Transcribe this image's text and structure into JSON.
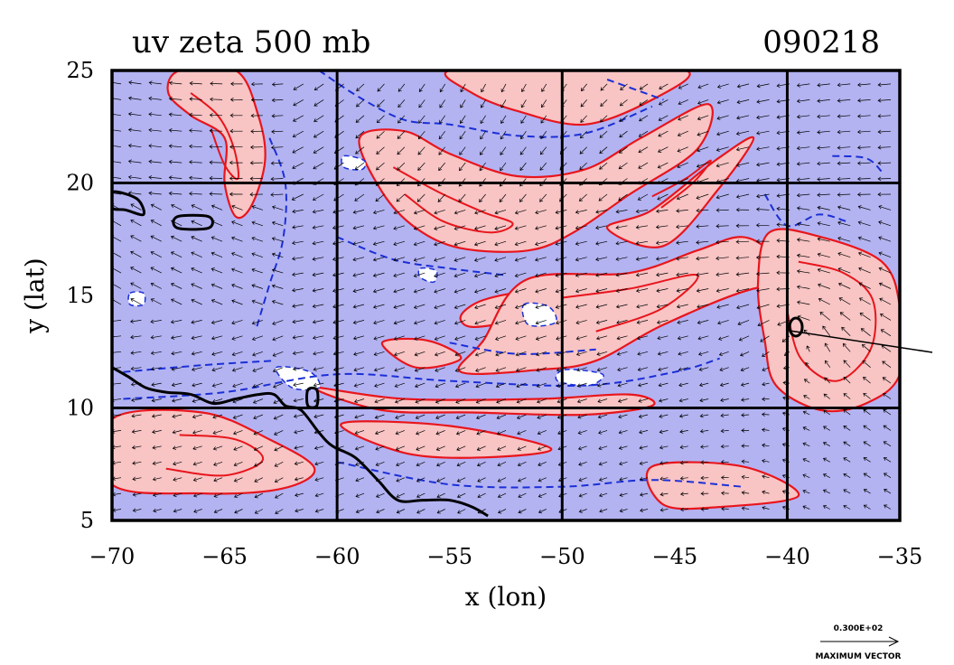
{
  "chart_data": {
    "type": "contour",
    "title": "uv zeta 500 mb",
    "date_label": "090218",
    "xlabel": "x (lon)",
    "ylabel": "y (lat)",
    "xlim": [
      -70,
      -35
    ],
    "ylim": [
      5,
      25
    ],
    "xticks": [
      -70,
      -65,
      -60,
      -55,
      -50,
      -45,
      -40,
      -35
    ],
    "xtick_labels": [
      "−70",
      "−65",
      "−60",
      "−55",
      "−50",
      "−45",
      "−40",
      "−35"
    ],
    "yticks": [
      5,
      10,
      15,
      20,
      25
    ],
    "ytick_labels": [
      "5",
      "10",
      "15",
      "20",
      "25"
    ],
    "grid_lon": [
      -60,
      -50,
      -40
    ],
    "grid_lat": [
      10,
      20
    ],
    "colors": {
      "negative_fill": "#b3b3f2",
      "positive_fill": "#f8c4c4",
      "positive_contour": "#e8151c",
      "negative_contour": "#1b2fd6",
      "grid": "#000000",
      "coast": "#000000"
    },
    "reference_vector": {
      "value_label": "0.300E+02",
      "caption": "MAXIMUM VECTOR"
    },
    "coastline": [
      [
        -70,
        11.8
      ],
      [
        -69.3,
        11.4
      ],
      [
        -68.5,
        10.9
      ],
      [
        -67.6,
        10.7
      ],
      [
        -66.5,
        10.6
      ],
      [
        -65.5,
        10.2
      ],
      [
        -64.5,
        10.4
      ],
      [
        -63.5,
        10.6
      ],
      [
        -62.8,
        10.6
      ],
      [
        -62.3,
        10.1
      ],
      [
        -61.6,
        9.9
      ],
      [
        -60.8,
        8.9
      ],
      [
        -60.2,
        8.3
      ],
      [
        -59.2,
        7.8
      ],
      [
        -58.2,
        6.8
      ],
      [
        -57.3,
        5.9
      ],
      [
        -56.2,
        5.9
      ],
      [
        -55,
        5.9
      ],
      [
        -54,
        5.6
      ],
      [
        -53.3,
        5.2
      ]
    ],
    "islands": [
      [
        [
          -70,
          19.6
        ],
        [
          -68.9,
          19.3
        ],
        [
          -68.6,
          18.6
        ],
        [
          -69.4,
          18.8
        ],
        [
          -70,
          18.9
        ]
      ],
      [
        [
          -67.1,
          18.5
        ],
        [
          -65.7,
          18.5
        ],
        [
          -65.7,
          18.0
        ],
        [
          -67.1,
          18.0
        ]
      ],
      [
        [
          -61.3,
          10.8
        ],
        [
          -60.9,
          10.8
        ],
        [
          -60.9,
          10.1
        ],
        [
          -61.3,
          10.1
        ]
      ]
    ],
    "positive_regions": [
      [
        [
          -67,
          25
        ],
        [
          -64.5,
          25
        ],
        [
          -63.5,
          23
        ],
        [
          -63.2,
          21
        ],
        [
          -63.8,
          19
        ],
        [
          -64.5,
          18.5
        ],
        [
          -65,
          20
        ],
        [
          -65,
          22
        ],
        [
          -66.5,
          23
        ],
        [
          -67.5,
          24
        ]
      ],
      [
        [
          -55,
          25
        ],
        [
          -50,
          25
        ],
        [
          -44.5,
          25
        ],
        [
          -46,
          23.7
        ],
        [
          -49,
          22.6
        ],
        [
          -52,
          23.2
        ],
        [
          -54,
          24
        ]
      ],
      [
        [
          -59,
          22
        ],
        [
          -57,
          22.3
        ],
        [
          -55,
          21.3
        ],
        [
          -52,
          20.3
        ],
        [
          -49,
          20.6
        ],
        [
          -46.5,
          22
        ],
        [
          -43.5,
          23.5
        ],
        [
          -44,
          21.5
        ],
        [
          -47,
          19.5
        ],
        [
          -49.5,
          17.8
        ],
        [
          -51.5,
          17
        ],
        [
          -54.5,
          17.1
        ],
        [
          -56.5,
          18
        ],
        [
          -58,
          19.6
        ]
      ],
      [
        [
          -48,
          18
        ],
        [
          -46,
          18.8
        ],
        [
          -43.2,
          21
        ],
        [
          -41.5,
          22
        ],
        [
          -43,
          19.8
        ],
        [
          -45.5,
          17.2
        ]
      ],
      [
        [
          -54.5,
          14.1
        ],
        [
          -53.5,
          14.8
        ],
        [
          -51.5,
          15.1
        ],
        [
          -52,
          14
        ],
        [
          -54,
          13.6
        ]
      ],
      [
        [
          -58,
          12.9
        ],
        [
          -56,
          13
        ],
        [
          -54.5,
          12.2
        ],
        [
          -56.5,
          11.8
        ]
      ],
      [
        [
          -51.6,
          15.7
        ],
        [
          -47,
          16
        ],
        [
          -44,
          17
        ],
        [
          -42,
          17.6
        ],
        [
          -40.5,
          16.8
        ],
        [
          -38.8,
          15.4
        ],
        [
          -41.5,
          15.3
        ],
        [
          -45.5,
          13.7
        ],
        [
          -48.5,
          12.1
        ],
        [
          -51,
          11.7
        ],
        [
          -54.5,
          11.6
        ],
        [
          -53.5,
          13
        ]
      ],
      [
        [
          -40.8,
          17.8
        ],
        [
          -38.5,
          17.6
        ],
        [
          -35.8,
          16.5
        ],
        [
          -35,
          14.5
        ],
        [
          -35,
          11.5
        ],
        [
          -36.5,
          10.2
        ],
        [
          -38.5,
          9.9
        ],
        [
          -40.5,
          11
        ],
        [
          -41,
          13
        ],
        [
          -41.3,
          15.5
        ]
      ],
      [
        [
          -61,
          10.9
        ],
        [
          -57,
          10.4
        ],
        [
          -51,
          10.4
        ],
        [
          -47,
          10.6
        ],
        [
          -46,
          10.1
        ],
        [
          -49,
          9.7
        ],
        [
          -54,
          9.8
        ],
        [
          -58,
          9.9
        ]
      ],
      [
        [
          -70,
          9.5
        ],
        [
          -66,
          9.8
        ],
        [
          -63,
          8.6
        ],
        [
          -61,
          7.3
        ],
        [
          -62.5,
          6.4
        ],
        [
          -66,
          6.2
        ],
        [
          -70,
          6.6
        ]
      ],
      [
        [
          -59.8,
          9.3
        ],
        [
          -55,
          9.2
        ],
        [
          -50.5,
          8.2
        ],
        [
          -53.5,
          7.8
        ],
        [
          -57,
          8.0
        ]
      ],
      [
        [
          -46,
          7.4
        ],
        [
          -42,
          7.4
        ],
        [
          -39.5,
          6.1
        ],
        [
          -43,
          5.6
        ],
        [
          -45.5,
          5.7
        ]
      ]
    ],
    "white_regions": [
      [
        [
          -62.7,
          11.8
        ],
        [
          -61.2,
          11.6
        ],
        [
          -60.8,
          10.9
        ],
        [
          -62,
          10.9
        ]
      ],
      [
        [
          -51.7,
          14.6
        ],
        [
          -50.6,
          14.5
        ],
        [
          -50.3,
          13.8
        ],
        [
          -51.5,
          13.7
        ]
      ],
      [
        [
          -49.9,
          11.7
        ],
        [
          -48.2,
          11.5
        ],
        [
          -48.8,
          11.0
        ],
        [
          -50.2,
          11.2
        ]
      ],
      [
        [
          -59.7,
          21.2
        ],
        [
          -58.8,
          21.0
        ],
        [
          -58.9,
          20.6
        ],
        [
          -59.7,
          20.7
        ]
      ],
      [
        [
          -56.3,
          16.2
        ],
        [
          -55.6,
          16.1
        ],
        [
          -55.7,
          15.6
        ],
        [
          -56.3,
          15.8
        ]
      ],
      [
        [
          -69.2,
          15.1
        ],
        [
          -68.6,
          15.1
        ],
        [
          -68.6,
          14.6
        ],
        [
          -69.2,
          14.6
        ]
      ]
    ],
    "positive_contour_lines": [
      [
        [
          -57.5,
          20.7
        ],
        [
          -55.5,
          19.6
        ],
        [
          -53.5,
          18.7
        ],
        [
          -52.2,
          18.2
        ],
        [
          -53.2,
          17.8
        ],
        [
          -55.3,
          18.3
        ],
        [
          -57,
          19.5
        ]
      ],
      [
        [
          -46,
          19.4
        ],
        [
          -44.5,
          20.2
        ],
        [
          -43.4,
          21
        ],
        [
          -44.2,
          20
        ],
        [
          -45.6,
          18.9
        ]
      ],
      [
        [
          -66.5,
          24
        ],
        [
          -65.3,
          23
        ],
        [
          -64.6,
          21.6
        ],
        [
          -64.4,
          20.2
        ],
        [
          -65,
          20.8
        ],
        [
          -65.6,
          22.4
        ]
      ],
      [
        [
          -39.5,
          16.5
        ],
        [
          -37.5,
          16
        ],
        [
          -36.2,
          14.8
        ],
        [
          -36.3,
          12.6
        ],
        [
          -37.8,
          11.2
        ],
        [
          -39.4,
          12.2
        ],
        [
          -40,
          14.3
        ]
      ],
      [
        [
          -50,
          14.9
        ],
        [
          -47,
          15.3
        ],
        [
          -44,
          15.9
        ],
        [
          -45.6,
          14.4
        ],
        [
          -48.5,
          13.4
        ]
      ],
      [
        [
          -67,
          8.8
        ],
        [
          -64.5,
          8.6
        ],
        [
          -63.3,
          7.7
        ],
        [
          -65,
          7
        ],
        [
          -67.6,
          7.3
        ]
      ]
    ],
    "negative_contour_lines": [
      [
        [
          -60.8,
          25
        ],
        [
          -59,
          23.8
        ],
        [
          -57,
          22.8
        ],
        [
          -55,
          22.6
        ],
        [
          -52,
          22.1
        ],
        [
          -49,
          22.2
        ],
        [
          -46,
          23.4
        ]
      ],
      [
        [
          -63,
          22
        ],
        [
          -62.3,
          20
        ],
        [
          -62.4,
          17.5
        ],
        [
          -63,
          15.5
        ],
        [
          -63.6,
          13.5
        ]
      ],
      [
        [
          -60,
          17.6
        ],
        [
          -57.5,
          16.6
        ],
        [
          -55,
          16.2
        ],
        [
          -52.5,
          15.9
        ]
      ],
      [
        [
          -38,
          21.2
        ],
        [
          -36.5,
          21.1
        ],
        [
          -35.8,
          20.5
        ]
      ],
      [
        [
          -55,
          12.9
        ],
        [
          -52,
          12.4
        ],
        [
          -48.5,
          12.6
        ]
      ],
      [
        [
          -69.5,
          11.6
        ],
        [
          -66,
          11.9
        ],
        [
          -62.8,
          12.1
        ]
      ],
      [
        [
          -69.5,
          10.4
        ],
        [
          -65,
          10.7
        ],
        [
          -60,
          11.5
        ],
        [
          -55,
          11.2
        ],
        [
          -49,
          11
        ],
        [
          -45,
          11.6
        ],
        [
          -43,
          12.2
        ]
      ],
      [
        [
          -60,
          7.6
        ],
        [
          -55,
          6.6
        ],
        [
          -50,
          6.5
        ],
        [
          -46,
          6.8
        ],
        [
          -42,
          6.5
        ]
      ],
      [
        [
          -48,
          24.6
        ],
        [
          -45.5,
          23.7
        ]
      ],
      [
        [
          -41,
          19.5
        ],
        [
          -40,
          18.1
        ],
        [
          -38.6,
          18.6
        ],
        [
          -37.4,
          18.3
        ]
      ]
    ]
  }
}
